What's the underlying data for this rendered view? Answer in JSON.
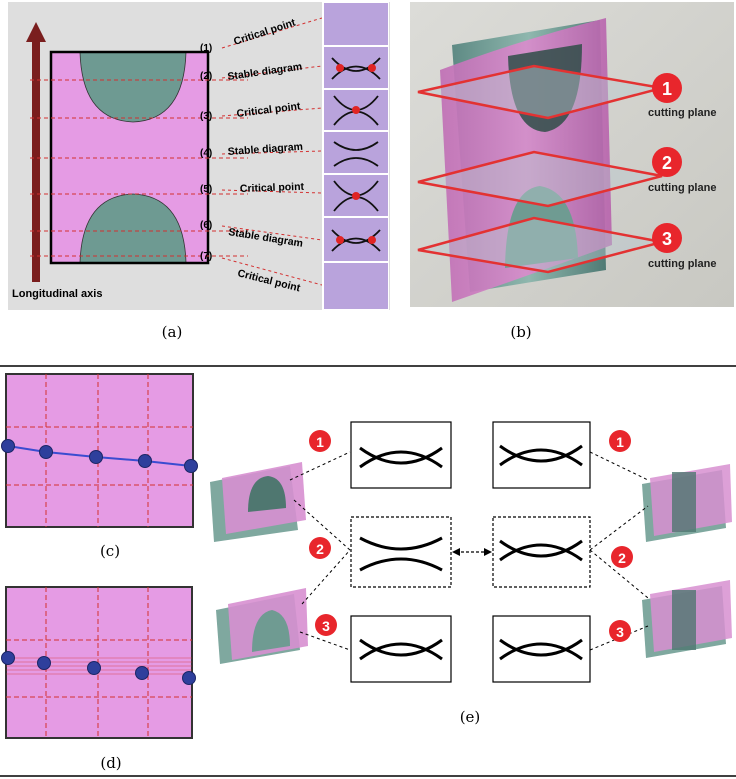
{
  "panel_a": {
    "axis_label": "Longitudinal axis",
    "levels": [
      "(1)",
      "(2)",
      "(3)",
      "(4)",
      "(5)",
      "(6)",
      "(7)"
    ],
    "annotations": [
      "Critical point",
      "Stable diagram",
      "Critical point",
      "Stable diagram",
      "Critical point",
      "Stable diagram",
      "Critical point"
    ],
    "caption": "(a)"
  },
  "panel_b": {
    "plane_numbers": [
      "1",
      "2",
      "3"
    ],
    "plane_label": "cutting plane",
    "caption": "(b)"
  },
  "panel_c": {
    "caption": "(c)"
  },
  "panel_d": {
    "caption": "(d)"
  },
  "panel_e": {
    "numbers": [
      "1",
      "2",
      "3"
    ],
    "caption": "(e)"
  },
  "colors": {
    "pink": "#e59be4",
    "teal": "#6e9a92",
    "red_dash": "#d33030",
    "badge_red": "#e8262c",
    "blue_point": "#3a4cb0",
    "axis_arrow": "#7a1e1e",
    "lavender": "#b9a3dc"
  }
}
